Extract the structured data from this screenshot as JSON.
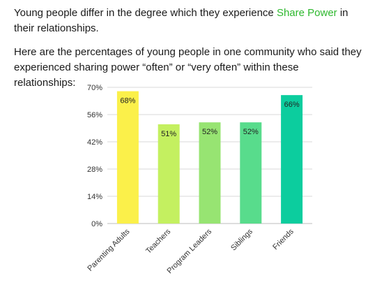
{
  "intro": {
    "before": "Young people differ in the degree which they experience ",
    "highlight": "Share Power",
    "after": " in their relationships."
  },
  "description": "Here are the percentages of young people in  one community who said they experienced sharing power “often” or “very often” within these relationships:",
  "colors": {
    "highlight": "#2eb82e",
    "bars": [
      "#fbf04a",
      "#c4f060",
      "#97e472",
      "#58dc8c",
      "#0ccd9e"
    ]
  },
  "chart_data": {
    "type": "bar",
    "categories": [
      "Parenting Adults",
      "Teachers",
      "Program Leaders",
      "Siblings",
      "Friends"
    ],
    "values": [
      68,
      51,
      52,
      52,
      66
    ],
    "value_labels": [
      "68%",
      "51%",
      "52%",
      "52%",
      "66%"
    ],
    "y_ticks": [
      "0%",
      "14%",
      "28%",
      "42%",
      "56%",
      "70%"
    ],
    "ylim": [
      0,
      70
    ],
    "grid": true,
    "legend": "none"
  }
}
